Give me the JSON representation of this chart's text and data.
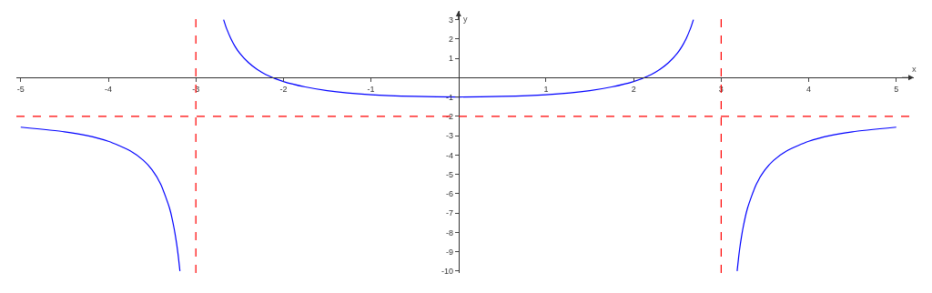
{
  "chart_data": {
    "type": "line",
    "xlabel": "x",
    "ylabel": "y",
    "xlim": [
      -5.05,
      5.2
    ],
    "ylim": [
      -10.1,
      3.45
    ],
    "xticks": [
      -5,
      -4,
      -3,
      -2,
      -1,
      1,
      2,
      3,
      4,
      5
    ],
    "yticks": [
      -10,
      -9,
      -8,
      -7,
      -6,
      -5,
      -4,
      -3,
      -2,
      -1,
      1,
      2,
      3
    ],
    "marker": "none",
    "line_style": "solid",
    "series": [
      {
        "color": "#0000ff",
        "x": [
          -5,
          -4.5,
          -4.25,
          -4,
          -3.75,
          -3.6,
          -3.5,
          -3.4,
          -3.3,
          -3.25,
          -3.22,
          -3.2,
          -3.182,
          null,
          -2.683,
          -2.65,
          -2.6,
          -2.55,
          -2.5,
          -2.4,
          -2.3,
          -2.2,
          -2,
          -1.75,
          -1.5,
          -1,
          -0.5,
          0,
          0.5,
          1,
          1.5,
          1.75,
          2,
          2.2,
          2.3,
          2.4,
          2.5,
          2.55,
          2.6,
          2.65,
          2.683,
          null,
          3.182,
          3.2,
          3.22,
          3.25,
          3.3,
          3.4,
          3.5,
          3.6,
          3.75,
          4,
          4.25,
          4.5,
          5
        ],
        "values": [
          -2.56,
          -2.8,
          -2.99,
          -3.29,
          -3.78,
          -4.27,
          -4.77,
          -5.52,
          -6.76,
          -7.76,
          -8.58,
          -9.26,
          -10,
          null,
          3,
          2.55,
          2.02,
          1.6,
          1.27,
          0.78,
          0.43,
          0.16,
          -0.2,
          -0.48,
          -0.67,
          -0.88,
          -0.97,
          -1,
          -0.97,
          -0.88,
          -0.67,
          -0.48,
          -0.2,
          0.16,
          0.43,
          0.78,
          1.27,
          1.6,
          2.02,
          2.55,
          3,
          null,
          -10,
          -9.26,
          -8.58,
          -7.76,
          -6.76,
          -5.52,
          -4.77,
          -4.27,
          -3.78,
          -3.29,
          -2.99,
          -2.8,
          -2.56
        ]
      }
    ],
    "ref_lines": [
      {
        "axis": "x",
        "value": -3,
        "color": "#ff0000",
        "line_style": "dashed"
      },
      {
        "axis": "x",
        "value": 3,
        "color": "#ff0000",
        "line_style": "dashed"
      },
      {
        "axis": "y",
        "value": -2,
        "color": "#ff0000",
        "line_style": "dashed"
      }
    ]
  }
}
